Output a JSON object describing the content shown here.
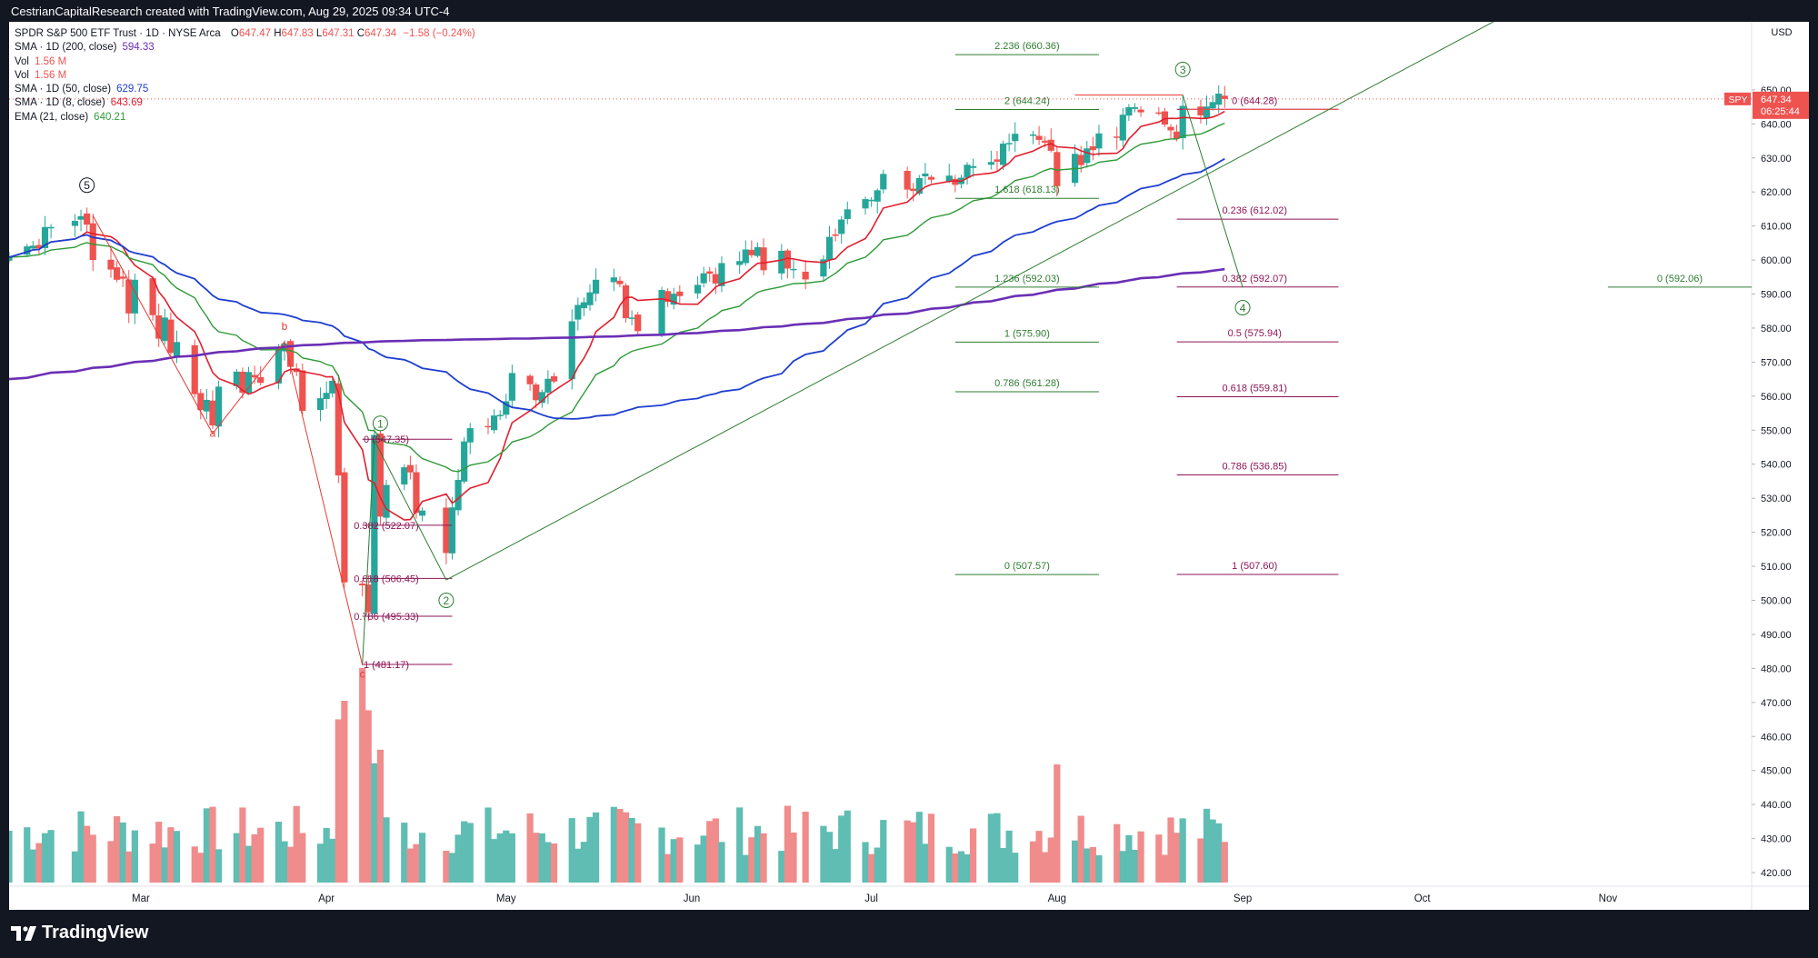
{
  "header": {
    "credit": "CestrianCapitalResearch created with TradingView.com, Aug 29, 2025 09:34 UTC-4"
  },
  "footer": {
    "brand": "TradingView"
  },
  "legend": {
    "title": "SPDR S&P 500 ETF Trust · 1D · NYSE Arca",
    "ohlc": [
      {
        "k": "O",
        "v": "647.47"
      },
      {
        "k": "H",
        "v": "647.83"
      },
      {
        "k": "L",
        "v": "647.31"
      },
      {
        "k": "C",
        "v": "647.34"
      }
    ],
    "change": "−1.58 (−0.24%)",
    "indicators": [
      {
        "name": "SMA · 1D (200, close)",
        "value": "594.33",
        "color": "#6a2fb5"
      },
      {
        "name": "Vol",
        "value": "1.56 M",
        "color": "#ef5350"
      },
      {
        "name": "Vol",
        "value": "1.56 M",
        "color": "#ef5350"
      },
      {
        "name": "SMA · 1D (50, close)",
        "value": "629.75",
        "color": "#1e3fcf"
      },
      {
        "name": "SMA · 1D (8, close)",
        "value": "643.69",
        "color": "#e0202e"
      },
      {
        "name": "EMA (21, close)",
        "value": "640.21",
        "color": "#2f9a37"
      }
    ]
  },
  "colors": {
    "up": "#26a69a",
    "down": "#ef5350",
    "volUp": "#5fbdb3",
    "volDown": "#f08c8c",
    "sma200": "#6a2fb5",
    "sma50": "#1e3fcf",
    "sma8": "#e0202e",
    "ema21": "#2f9a37",
    "fibGreen": "#2e7d32",
    "fibPurple": "#8e1455",
    "wave": "#e53935"
  },
  "chart_data": {
    "type": "candlestick",
    "symbol": "SPY",
    "currency": "USD",
    "ylim": [
      416,
      670
    ],
    "yticks": [
      420,
      430,
      440,
      450,
      460,
      470,
      480,
      490,
      500,
      510,
      520,
      530,
      540,
      550,
      560,
      570,
      580,
      590,
      600,
      610,
      620,
      630,
      640,
      650
    ],
    "xticks": [
      {
        "label": "Mar",
        "date": "2025-03-01"
      },
      {
        "label": "Apr",
        "date": "2025-04-01"
      },
      {
        "label": "May",
        "date": "2025-05-01"
      },
      {
        "label": "Jun",
        "date": "2025-06-01"
      },
      {
        "label": "Jul",
        "date": "2025-07-01"
      },
      {
        "label": "Aug",
        "date": "2025-08-01"
      },
      {
        "label": "Sep",
        "date": "2025-09-01"
      },
      {
        "label": "Oct",
        "date": "2025-10-01"
      },
      {
        "label": "Nov",
        "date": "2025-11-01"
      }
    ],
    "x_start": "2025-02-07",
    "x_end": "2025-11-25",
    "last_price": {
      "value": "647.34",
      "countdown": "06:25:44",
      "symbol": "SPY"
    },
    "closes": [
      [
        "2025-02-07",
        600.8
      ],
      [
        "2025-02-10",
        604.0
      ],
      [
        "2025-02-11",
        604.2
      ],
      [
        "2025-02-12",
        603.4
      ],
      [
        "2025-02-13",
        609.7
      ],
      [
        "2025-02-14",
        609.7
      ],
      [
        "2025-02-18",
        611.5
      ],
      [
        "2025-02-19",
        612.9
      ],
      [
        "2025-02-20",
        610.4
      ],
      [
        "2025-02-21",
        600.0
      ],
      [
        "2025-02-24",
        597.2
      ],
      [
        "2025-02-25",
        594.2
      ],
      [
        "2025-02-26",
        594.5
      ],
      [
        "2025-02-27",
        584.3
      ],
      [
        "2025-02-28",
        594.2
      ],
      [
        "2025-03-03",
        583.8
      ],
      [
        "2025-03-04",
        576.9
      ],
      [
        "2025-03-05",
        583.1
      ],
      [
        "2025-03-06",
        572.7
      ],
      [
        "2025-03-07",
        575.9
      ],
      [
        "2025-03-10",
        560.6
      ],
      [
        "2025-03-11",
        555.9
      ],
      [
        "2025-03-12",
        558.9
      ],
      [
        "2025-03-13",
        551.4
      ],
      [
        "2025-03-14",
        562.8
      ],
      [
        "2025-03-17",
        567.2
      ],
      [
        "2025-03-18",
        561.0
      ],
      [
        "2025-03-19",
        567.1
      ],
      [
        "2025-03-20",
        565.5
      ],
      [
        "2025-03-21",
        563.9
      ],
      [
        "2025-03-24",
        574.1
      ],
      [
        "2025-03-25",
        575.5
      ],
      [
        "2025-03-26",
        568.6
      ],
      [
        "2025-03-27",
        567.1
      ],
      [
        "2025-03-28",
        555.7
      ],
      [
        "2025-03-31",
        559.4
      ],
      [
        "2025-04-01",
        560.97
      ],
      [
        "2025-04-02",
        564.5
      ],
      [
        "2025-04-03",
        536.7
      ],
      [
        "2025-04-04",
        505.3
      ],
      [
        "2025-04-07",
        504.4
      ],
      [
        "2025-04-08",
        496.5
      ],
      [
        "2025-04-09",
        548.6
      ],
      [
        "2025-04-10",
        524.6
      ],
      [
        "2025-04-11",
        533.9
      ],
      [
        "2025-04-14",
        539.1
      ],
      [
        "2025-04-15",
        537.6
      ],
      [
        "2025-04-16",
        525.7
      ],
      [
        "2025-04-17",
        526.4
      ],
      [
        "2025-04-21",
        513.9
      ],
      [
        "2025-04-22",
        527.3
      ],
      [
        "2025-04-23",
        535.4
      ],
      [
        "2025-04-24",
        546.7
      ],
      [
        "2025-04-25",
        550.6
      ],
      [
        "2025-04-28",
        550.9
      ],
      [
        "2025-04-29",
        554.3
      ],
      [
        "2025-04-30",
        554.5
      ],
      [
        "2025-05-01",
        558.5
      ],
      [
        "2025-05-02",
        566.8
      ],
      [
        "2025-05-05",
        563.5
      ],
      [
        "2025-05-06",
        558.8
      ],
      [
        "2025-05-07",
        561.2
      ],
      [
        "2025-05-08",
        565.1
      ],
      [
        "2025-05-09",
        564.3
      ],
      [
        "2025-05-12",
        582.0
      ],
      [
        "2025-05-13",
        586.8
      ],
      [
        "2025-05-14",
        587.6
      ],
      [
        "2025-05-15",
        590.5
      ],
      [
        "2025-05-16",
        594.2
      ],
      [
        "2025-05-19",
        594.9
      ],
      [
        "2025-05-20",
        592.9
      ],
      [
        "2025-05-21",
        582.9
      ],
      [
        "2025-05-22",
        583.1
      ],
      [
        "2025-05-23",
        579.1
      ],
      [
        "2025-05-27",
        591.2
      ],
      [
        "2025-05-28",
        587.7
      ],
      [
        "2025-05-29",
        590.1
      ],
      [
        "2025-05-30",
        589.4
      ],
      [
        "2025-06-02",
        592.7
      ],
      [
        "2025-06-03",
        596.1
      ],
      [
        "2025-06-04",
        596.0
      ],
      [
        "2025-06-05",
        593.1
      ],
      [
        "2025-06-06",
        599.1
      ],
      [
        "2025-06-09",
        599.7
      ],
      [
        "2025-06-10",
        603.1
      ],
      [
        "2025-06-11",
        601.4
      ],
      [
        "2025-06-12",
        603.8
      ],
      [
        "2025-06-13",
        597.0
      ],
      [
        "2025-06-16",
        602.7
      ],
      [
        "2025-06-17",
        597.5
      ],
      [
        "2025-06-18",
        597.4
      ],
      [
        "2025-06-20",
        594.3
      ],
      [
        "2025-06-23",
        600.2
      ],
      [
        "2025-06-24",
        606.8
      ],
      [
        "2025-06-25",
        607.1
      ],
      [
        "2025-06-26",
        611.9
      ],
      [
        "2025-06-27",
        614.9
      ],
      [
        "2025-06-30",
        617.9
      ],
      [
        "2025-07-01",
        617.7
      ],
      [
        "2025-07-02",
        620.5
      ],
      [
        "2025-07-03",
        625.3
      ],
      [
        "2025-07-07",
        620.7
      ],
      [
        "2025-07-08",
        620.3
      ],
      [
        "2025-07-09",
        624.1
      ],
      [
        "2025-07-10",
        625.4
      ],
      [
        "2025-07-11",
        623.6
      ],
      [
        "2025-07-14",
        624.8
      ],
      [
        "2025-07-15",
        622.1
      ],
      [
        "2025-07-16",
        624.2
      ],
      [
        "2025-07-17",
        628.0
      ],
      [
        "2025-07-18",
        627.6
      ],
      [
        "2025-07-21",
        628.8
      ],
      [
        "2025-07-22",
        628.9
      ],
      [
        "2025-07-23",
        634.2
      ],
      [
        "2025-07-24",
        634.4
      ],
      [
        "2025-07-25",
        637.1
      ],
      [
        "2025-07-28",
        636.9
      ],
      [
        "2025-07-29",
        635.3
      ],
      [
        "2025-07-30",
        634.5
      ],
      [
        "2025-07-31",
        632.1
      ],
      [
        "2025-08-01",
        621.7
      ],
      [
        "2025-08-04",
        631.2
      ],
      [
        "2025-08-05",
        627.9
      ],
      [
        "2025-08-06",
        632.8
      ],
      [
        "2025-08-07",
        632.3
      ],
      [
        "2025-08-08",
        637.2
      ],
      [
        "2025-08-11",
        635.9
      ],
      [
        "2025-08-12",
        642.7
      ],
      [
        "2025-08-13",
        644.9
      ],
      [
        "2025-08-14",
        644.9
      ],
      [
        "2025-08-15",
        643.4
      ],
      [
        "2025-08-18",
        643.3
      ],
      [
        "2025-08-19",
        639.8
      ],
      [
        "2025-08-20",
        638.1
      ],
      [
        "2025-08-21",
        635.6
      ],
      [
        "2025-08-22",
        645.3
      ],
      [
        "2025-08-25",
        642.5
      ],
      [
        "2025-08-26",
        645.1
      ],
      [
        "2025-08-27",
        646.4
      ],
      [
        "2025-08-28",
        648.9
      ],
      [
        "2025-08-29",
        647.34
      ]
    ],
    "volume_note": "daily volume histogram (relative), Apr 7 spike largest",
    "fib_levels_left": [
      {
        "label": "1 (481.17)",
        "value": 481.17
      },
      {
        "label": "0.786 (495.33)",
        "value": 495.33
      },
      {
        "label": "0.618 (506.45)",
        "value": 506.45
      },
      {
        "label": "0.382 (522.07)",
        "value": 522.07
      },
      {
        "label": "0 (547.35)",
        "value": 547.35
      }
    ],
    "fib_levels_ext": [
      {
        "label": "2.236 (660.36)",
        "value": 660.36
      },
      {
        "label": "2 (644.24)",
        "value": 644.24
      },
      {
        "label": "1.618 (618.13)",
        "value": 618.13
      },
      {
        "label": "1.236 (592.03)",
        "value": 592.03
      },
      {
        "label": "1 (575.90)",
        "value": 575.9
      },
      {
        "label": "0.786 (561.28)",
        "value": 561.28
      },
      {
        "label": "0 (507.57)",
        "value": 507.57
      }
    ],
    "fib_levels_retrace": [
      {
        "label": "0 (644.28)",
        "value": 644.28
      },
      {
        "label": "0.236 (612.02)",
        "value": 612.02
      },
      {
        "label": "0.382 (592.07)",
        "value": 592.07
      },
      {
        "label": "0.5 (575.94)",
        "value": 575.94
      },
      {
        "label": "0.618 (559.81)",
        "value": 559.81
      },
      {
        "label": "0.786 (536.85)",
        "value": 536.85
      },
      {
        "label": "1 (507.60)",
        "value": 507.6
      }
    ],
    "far_level": {
      "label": "0 (592.06)",
      "value": 592.06
    },
    "wave_labels": [
      "5",
      "1",
      "2",
      "3",
      "4",
      "a",
      "b",
      "c"
    ]
  }
}
